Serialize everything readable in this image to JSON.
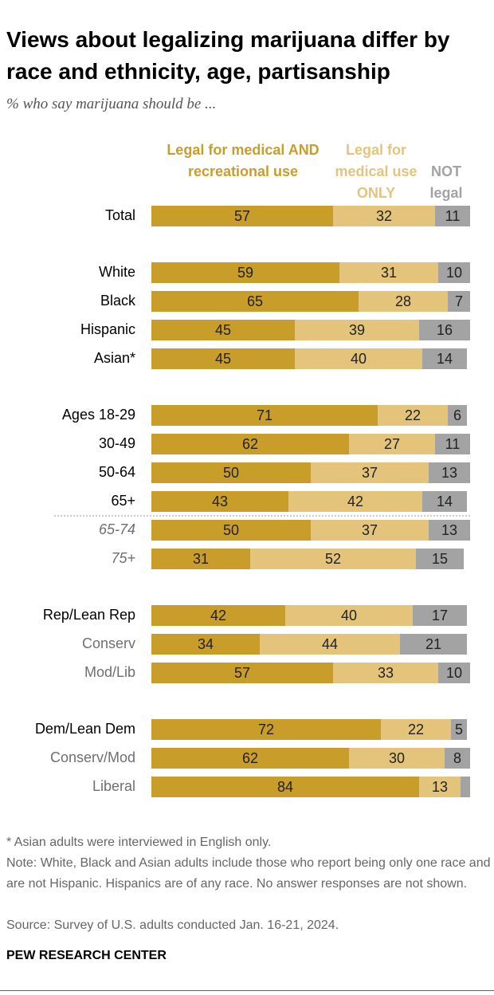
{
  "chart_data": {
    "type": "stacked-bar",
    "title": "Views about legalizing marijuana differ by race and ethnicity, age, partisanship",
    "subtitle": "% who say marijuana should be ...",
    "categories": [
      "Total",
      "White",
      "Black",
      "Hispanic",
      "Asian*",
      "Ages 18-29",
      "30-49",
      "50-64",
      "65+",
      "65-74",
      "75+",
      "Rep/Lean Rep",
      "Conserv",
      "Mod/Lib",
      "Dem/Lean Dem",
      "Conserv/Mod",
      "Liberal"
    ],
    "series": [
      {
        "name": "Legal for medical AND recreational use",
        "color": "#c99d2a",
        "values": [
          57,
          59,
          65,
          45,
          45,
          71,
          62,
          50,
          43,
          50,
          31,
          42,
          34,
          57,
          72,
          62,
          84
        ]
      },
      {
        "name": "Legal for medical use ONLY",
        "color": "#e3c47a",
        "values": [
          32,
          31,
          28,
          39,
          40,
          22,
          27,
          37,
          42,
          37,
          52,
          40,
          44,
          33,
          22,
          30,
          13
        ]
      },
      {
        "name": "NOT legal",
        "color": "#a3a3a3",
        "values": [
          11,
          10,
          7,
          16,
          14,
          6,
          11,
          13,
          14,
          13,
          15,
          17,
          21,
          10,
          5,
          8,
          3
        ],
        "value_labels": [
          "11",
          "10",
          "7",
          "16",
          "14",
          "6",
          "11",
          "13",
          "14",
          "13",
          "15",
          "17",
          "21",
          "10",
          "5",
          "8",
          null
        ]
      }
    ],
    "xlim": [
      0,
      100
    ],
    "notes": [
      "* Asian adults were interviewed in English only.",
      "Note: White, Black and Asian adults include those who report being only one race and are not Hispanic. Hispanics are of any race. No answer responses are not shown."
    ],
    "source": "Source: Survey of U.S. adults conducted Jan. 16-21, 2024.",
    "footer": "PEW RESEARCH CENTER"
  }
}
